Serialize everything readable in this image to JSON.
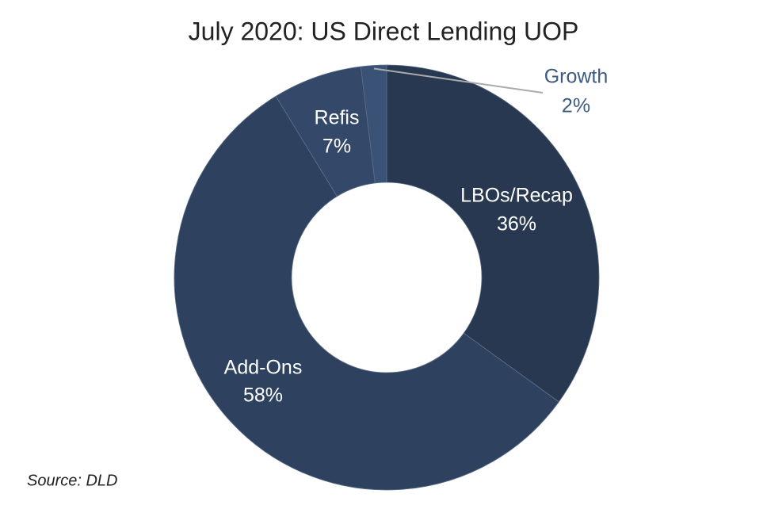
{
  "chart_data": {
    "type": "pie",
    "title": "July 2020: US Direct Lending UOP",
    "categories": [
      "LBOs/Recap",
      "Add-Ons",
      "Refis",
      "Growth"
    ],
    "values": [
      36,
      58,
      7,
      2
    ],
    "value_labels": [
      "36%",
      "58%",
      "7%",
      "2%"
    ],
    "colors": [
      "#283850",
      "#2e4260",
      "#34496a",
      "#3a5275"
    ],
    "source": "Source: DLD"
  }
}
